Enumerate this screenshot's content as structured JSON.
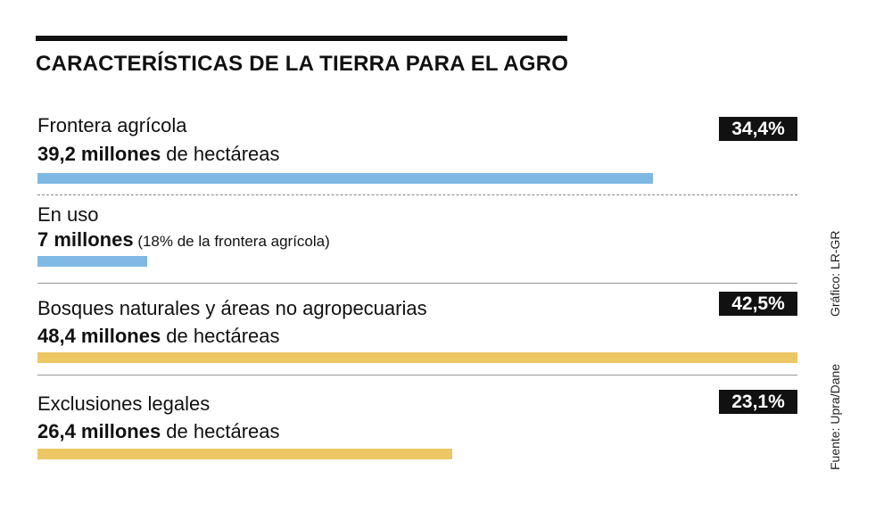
{
  "title": "CARACTERÍSTICAS DE LA TIERRA PARA EL AGRO",
  "credit": "Gráfico: LR-GR",
  "source": "Fuente: Upra/Dane",
  "colors": {
    "blue": "#7fb9e3",
    "yellow": "#ecc764",
    "badge": "#111111"
  },
  "rows": [
    {
      "label": "Frontera agrícola",
      "amount_bold": "39,2 millones",
      "amount_rest": " de hectáreas",
      "pct": "34,4%"
    },
    {
      "label": "En uso",
      "amount_bold": "7 millones",
      "amount_rest": " (18% de la frontera agrícola)"
    },
    {
      "label": "Bosques naturales y áreas no agropecuarias",
      "amount_bold": "48,4 millones",
      "amount_rest": " de hectáreas",
      "pct": "42,5%"
    },
    {
      "label": "Exclusiones legales",
      "amount_bold": "26,4 millones",
      "amount_rest": " de hectáreas",
      "pct": "23,1%"
    }
  ],
  "chart_data": {
    "type": "bar",
    "categories": [
      "Frontera agrícola",
      "En uso",
      "Bosques naturales y áreas no agropecuarias",
      "Exclusiones legales"
    ],
    "values": [
      39.2,
      7,
      48.4,
      26.4
    ],
    "percentages": [
      34.4,
      null,
      42.5,
      23.1
    ],
    "unit": "millones de hectáreas",
    "bar_colors": [
      "#7fb9e3",
      "#7fb9e3",
      "#ecc764",
      "#ecc764"
    ],
    "xlim": [
      0,
      48.4
    ]
  }
}
